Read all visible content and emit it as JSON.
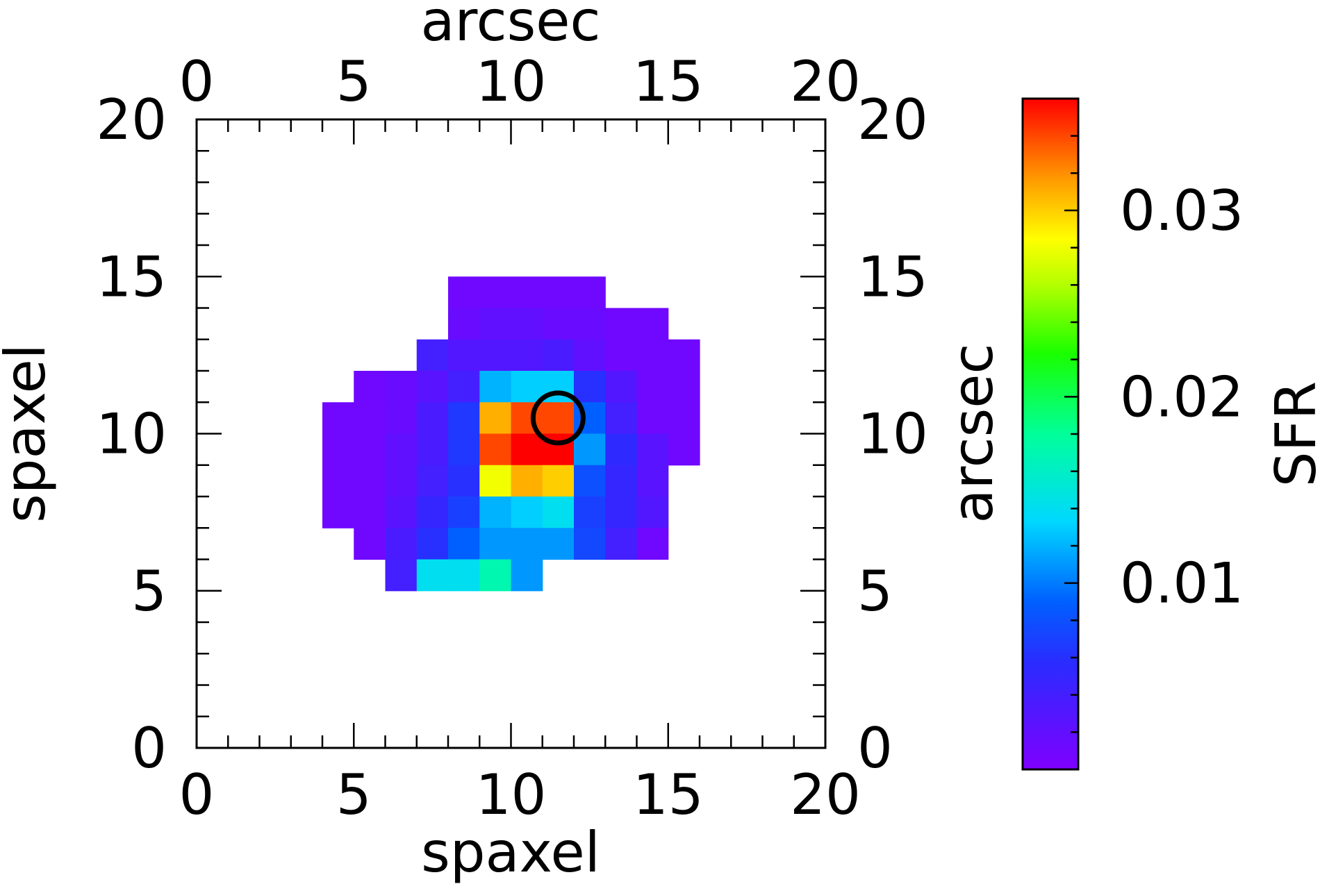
{
  "chart_data": {
    "type": "heatmap",
    "xlabel": "spaxel",
    "ylabel": "spaxel",
    "top_xlabel": "arcsec",
    "right_ylabel": "arcsec",
    "xlim": [
      0,
      20
    ],
    "ylim": [
      0,
      20
    ],
    "x_ticks": [
      "0",
      "5",
      "10",
      "15",
      "20"
    ],
    "y_ticks": [
      "0",
      "5",
      "10",
      "15",
      "20"
    ],
    "colorbar": {
      "label": "SFR",
      "range": [
        0,
        0.036
      ],
      "ticks": [
        "0.01",
        "0.02",
        "0.03"
      ],
      "tick_values": [
        0.01,
        0.02,
        0.03
      ],
      "colormap": "rainbow (violet-blue-cyan-green-yellow-orange-red)"
    },
    "marker": {
      "shape": "circle",
      "x": 11.5,
      "y": 10.5,
      "color": "#000000"
    },
    "cells": [
      {
        "row": 14,
        "values": [
          [
            8,
            0.001
          ],
          [
            9,
            0.001
          ],
          [
            10,
            0.001
          ],
          [
            11,
            0.001
          ],
          [
            12,
            0.001
          ]
        ]
      },
      {
        "row": 13,
        "values": [
          [
            8,
            0.0015
          ],
          [
            9,
            0.002
          ],
          [
            10,
            0.002
          ],
          [
            11,
            0.0015
          ],
          [
            12,
            0.0015
          ],
          [
            13,
            0.001
          ],
          [
            14,
            0.001
          ]
        ]
      },
      {
        "row": 12,
        "values": [
          [
            7,
            0.004
          ],
          [
            8,
            0.003
          ],
          [
            9,
            0.003
          ],
          [
            10,
            0.003
          ],
          [
            11,
            0.0035
          ],
          [
            12,
            0.002
          ],
          [
            13,
            0.001
          ],
          [
            14,
            0.001
          ],
          [
            15,
            0.001
          ]
        ]
      },
      {
        "row": 11,
        "values": [
          [
            5,
            0.001
          ],
          [
            6,
            0.0015
          ],
          [
            7,
            0.0025
          ],
          [
            8,
            0.004
          ],
          [
            9,
            0.012
          ],
          [
            10,
            0.013
          ],
          [
            11,
            0.013
          ],
          [
            12,
            0.006
          ],
          [
            13,
            0.003
          ],
          [
            14,
            0.001
          ],
          [
            15,
            0.001
          ]
        ]
      },
      {
        "row": 10,
        "values": [
          [
            4,
            0.001
          ],
          [
            5,
            0.001
          ],
          [
            6,
            0.0015
          ],
          [
            7,
            0.0035
          ],
          [
            8,
            0.0065
          ],
          [
            9,
            0.031
          ],
          [
            10,
            0.034
          ],
          [
            11,
            0.034
          ],
          [
            12,
            0.009
          ],
          [
            13,
            0.004
          ],
          [
            14,
            0.001
          ],
          [
            15,
            0.001
          ]
        ]
      },
      {
        "row": 9,
        "values": [
          [
            4,
            0.001
          ],
          [
            5,
            0.001
          ],
          [
            6,
            0.002
          ],
          [
            7,
            0.0035
          ],
          [
            8,
            0.0065
          ],
          [
            9,
            0.034
          ],
          [
            10,
            0.036
          ],
          [
            11,
            0.036
          ],
          [
            12,
            0.011
          ],
          [
            13,
            0.0055
          ],
          [
            14,
            0.0025
          ],
          [
            15,
            0.001
          ]
        ]
      },
      {
        "row": 8,
        "values": [
          [
            4,
            0.001
          ],
          [
            5,
            0.001
          ],
          [
            6,
            0.002
          ],
          [
            7,
            0.004
          ],
          [
            8,
            0.006
          ],
          [
            9,
            0.028
          ],
          [
            10,
            0.031
          ],
          [
            11,
            0.03
          ],
          [
            12,
            0.008
          ],
          [
            13,
            0.005
          ],
          [
            14,
            0.0025
          ]
        ]
      },
      {
        "row": 7,
        "values": [
          [
            4,
            0.001
          ],
          [
            5,
            0.001
          ],
          [
            6,
            0.0025
          ],
          [
            7,
            0.005
          ],
          [
            8,
            0.007
          ],
          [
            9,
            0.012
          ],
          [
            10,
            0.013
          ],
          [
            11,
            0.014
          ],
          [
            12,
            0.007
          ],
          [
            13,
            0.005
          ],
          [
            14,
            0.003
          ]
        ]
      },
      {
        "row": 6,
        "values": [
          [
            5,
            0.001
          ],
          [
            6,
            0.0035
          ],
          [
            7,
            0.006
          ],
          [
            8,
            0.009
          ],
          [
            9,
            0.011
          ],
          [
            10,
            0.011
          ],
          [
            11,
            0.011
          ],
          [
            12,
            0.0075
          ],
          [
            13,
            0.004
          ],
          [
            14,
            0.001
          ]
        ]
      },
      {
        "row": 5,
        "values": [
          [
            6,
            0.004
          ],
          [
            7,
            0.014
          ],
          [
            8,
            0.014
          ],
          [
            9,
            0.017
          ],
          [
            10,
            0.011
          ]
        ]
      }
    ]
  }
}
